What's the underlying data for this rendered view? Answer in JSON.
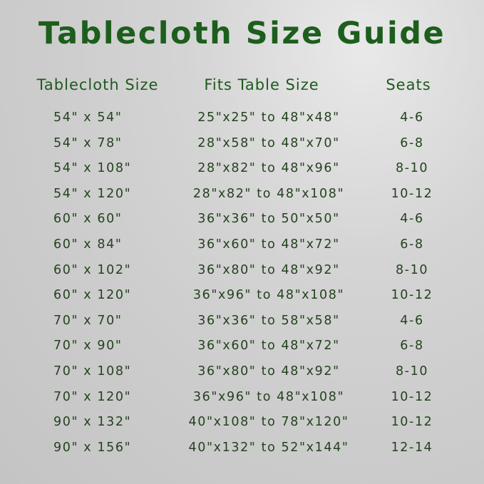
{
  "title": "Tablecloth Size Guide",
  "headers": {
    "size": "Tablecloth Size",
    "fits": "Fits Table Size",
    "seats": "Seats"
  },
  "rows": [
    {
      "size": "54\" x 54\"",
      "fits": "25\"x25\" to 48\"x48\"",
      "seats": "4-6"
    },
    {
      "size": "54\" x 78\"",
      "fits": "28\"x58\" to 48\"x70\"",
      "seats": "6-8"
    },
    {
      "size": "54\" x 108\"",
      "fits": "28\"x82\" to 48\"x96\"",
      "seats": "8-10"
    },
    {
      "size": "54\" x 120\"",
      "fits": "28\"x82\" to 48\"x108\"",
      "seats": "10-12"
    },
    {
      "size": "60\" x 60\"",
      "fits": "36\"x36\" to 50\"x50\"",
      "seats": "4-6"
    },
    {
      "size": "60\" x 84\"",
      "fits": "36\"x60\" to 48\"x72\"",
      "seats": "6-8"
    },
    {
      "size": "60\" x 102\"",
      "fits": "36\"x80\" to 48\"x92\"",
      "seats": "8-10"
    },
    {
      "size": "60\" x 120\"",
      "fits": "36\"x96\" to 48\"x108\"",
      "seats": "10-12"
    },
    {
      "size": "70\" x 70\"",
      "fits": "36\"x36\" to 58\"x58\"",
      "seats": "4-6"
    },
    {
      "size": "70\" x 90\"",
      "fits": "36\"x60\" to 48\"x72\"",
      "seats": "6-8"
    },
    {
      "size": "70\" x 108\"",
      "fits": "36\"x80\" to 48\"x92\"",
      "seats": "8-10"
    },
    {
      "size": "70\" x 120\"",
      "fits": "36\"x96\" to 48\"x108\"",
      "seats": "10-12"
    },
    {
      "size": "90\" x 132\"",
      "fits": "40\"x108\" to 78\"x120\"",
      "seats": "10-12"
    },
    {
      "size": "90\" x 156\"",
      "fits": "40\"x132\" to 52\"x144\"",
      "seats": "12-14"
    }
  ]
}
